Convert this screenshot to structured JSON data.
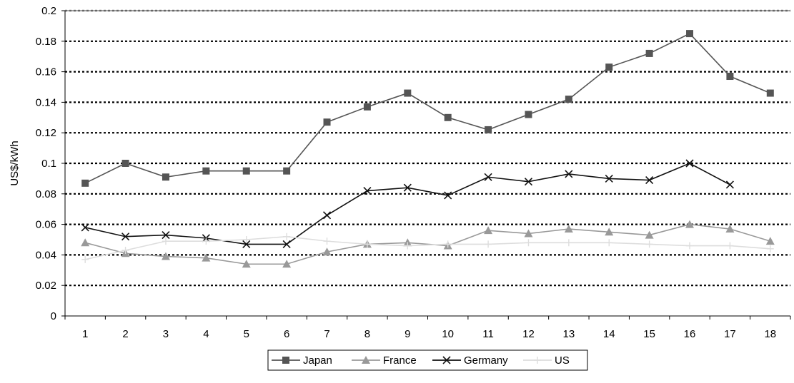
{
  "chart_data": {
    "type": "line",
    "title": "",
    "xlabel": "",
    "ylabel": "US$/kWh",
    "categories": [
      "1",
      "2",
      "3",
      "4",
      "5",
      "6",
      "7",
      "8",
      "9",
      "10",
      "11",
      "12",
      "13",
      "14",
      "15",
      "16",
      "17",
      "18"
    ],
    "ylim": [
      0,
      0.2
    ],
    "yticks": [
      "0",
      "0.02",
      "0.04",
      "0.06",
      "0.08",
      "0.1",
      "0.12",
      "0.14",
      "0.16",
      "0.18",
      "0.2"
    ],
    "grid": "horizontal dotted",
    "legend_position": "bottom",
    "series": [
      {
        "name": "Japan",
        "color": "#555555",
        "marker": "square",
        "values": [
          0.087,
          0.1,
          0.091,
          0.095,
          0.095,
          0.095,
          0.127,
          0.137,
          0.146,
          0.13,
          0.122,
          0.132,
          0.142,
          0.163,
          0.172,
          0.185,
          0.157,
          0.146
        ]
      },
      {
        "name": "France",
        "color": "#999999",
        "marker": "triangle",
        "values": [
          0.048,
          0.041,
          0.039,
          0.038,
          0.034,
          0.034,
          0.042,
          0.047,
          0.048,
          0.046,
          0.056,
          0.054,
          0.057,
          0.055,
          0.053,
          0.06,
          0.057,
          0.049
        ]
      },
      {
        "name": "Germany",
        "color": "#111111",
        "marker": "x",
        "values": [
          0.058,
          0.052,
          0.053,
          0.051,
          0.047,
          0.047,
          0.066,
          0.082,
          0.084,
          0.079,
          0.091,
          0.088,
          0.093,
          0.09,
          0.089,
          0.1,
          0.086,
          null
        ]
      },
      {
        "name": "US",
        "color": "#dddddd",
        "marker": "plus",
        "values": [
          0.037,
          0.043,
          0.049,
          0.049,
          0.05,
          0.052,
          0.049,
          0.047,
          0.046,
          0.047,
          0.047,
          0.048,
          0.048,
          0.048,
          0.047,
          0.046,
          0.046,
          0.044
        ]
      }
    ]
  }
}
